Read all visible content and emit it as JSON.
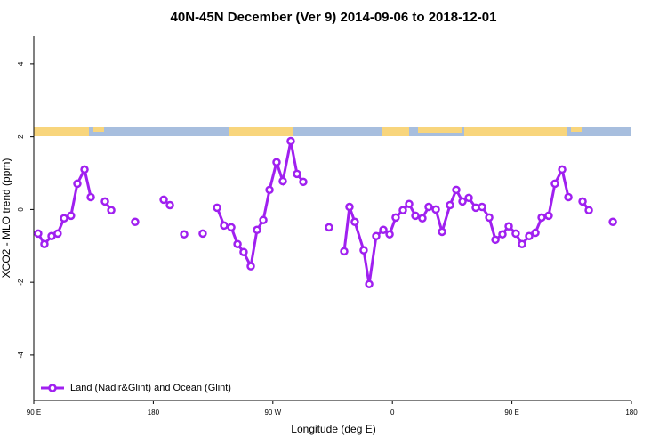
{
  "chart_data": {
    "type": "line",
    "title": "40N-45N December (Ver 9)   2014-09-06 to 2018-12-01",
    "x_label": "Longitude (deg E)",
    "y_label": "XCO2 - MLO trend (ppm)",
    "legend": "bottom-left",
    "x": [
      93.3,
      98,
      103.4,
      108,
      112.8,
      118,
      122.8,
      128.2,
      132.9,
      null,
      143.6,
      148.3,
      null,
      166.3,
      null,
      187.8,
      192.5,
      null,
      203.2,
      null,
      217.2,
      null,
      228,
      233.3,
      238.7,
      243.4,
      248,
      253.4,
      258.1,
      262.8,
      267.5,
      272.8,
      277.5,
      283.5,
      288.2,
      292.9,
      null,
      312.3,
      null,
      323.7,
      327.7,
      331.7,
      338.4,
      342.5,
      347.8,
      353.2,
      357.9,
      362.5,
      367.9,
      372.6,
      377.3,
      382.6,
      387.3,
      392.7,
      397.4,
      403.4,
      408.1,
      412.8,
      417.5,
      422.8,
      427.5,
      432.9,
      437.6,
      442.9,
      447.6,
      452.9,
      457.6,
      463,
      467.7,
      472.4,
      477.7,
      482.4,
      487.8,
      492.5,
      null,
      503.2,
      507.9,
      null,
      526
    ],
    "series": [
      {
        "name": "Land (Nadir&Glint) and Ocean (Glint)",
        "color": "#a020f0",
        "values": [
          -0.66,
          -0.95,
          -0.73,
          -0.66,
          -0.24,
          -0.17,
          0.71,
          1.1,
          0.34,
          null,
          0.22,
          -0.02,
          null,
          -0.34,
          null,
          0.27,
          0.12,
          null,
          -0.68,
          null,
          -0.66,
          null,
          0.05,
          -0.44,
          -0.49,
          -0.95,
          -1.17,
          -1.56,
          -0.56,
          -0.29,
          0.54,
          1.3,
          0.78,
          1.88,
          0.98,
          0.76,
          null,
          -0.49,
          null,
          -1.15,
          0.07,
          -0.34,
          -1.12,
          -2.05,
          -0.73,
          -0.56,
          -0.68,
          -0.22,
          -0.02,
          0.15,
          -0.17,
          -0.24,
          0.07,
          0,
          -0.61,
          0.12,
          0.54,
          0.22,
          0.32,
          0.05,
          0.07,
          -0.22,
          -0.83,
          -0.68,
          -0.46,
          -0.66,
          -0.95,
          -0.73,
          -0.64,
          -0.22,
          -0.17,
          0.71,
          1.1,
          0.34,
          null,
          0.22,
          -0.02,
          null,
          -0.34
        ]
      }
    ],
    "xlim": [
      90,
      540
    ],
    "xticks": [
      {
        "value": 90,
        "label": "90 E"
      },
      180,
      {
        "value": 270,
        "label": "90 W"
      },
      {
        "value": 360,
        "label": "0"
      },
      {
        "value": 450,
        "label": "90 E"
      },
      {
        "value": 540,
        "label": "180"
      }
    ],
    "ylim": [
      -5.25,
      4.78
    ],
    "yticks": [
      -4,
      -2,
      0,
      2,
      4
    ]
  }
}
